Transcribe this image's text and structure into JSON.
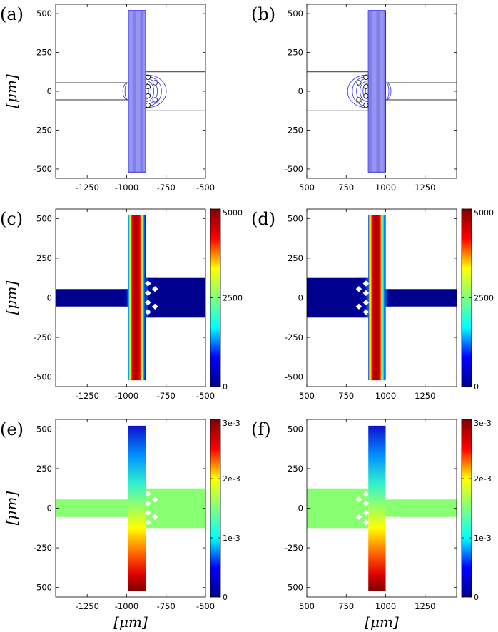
{
  "chart_data": [
    {
      "panel": "(a)",
      "type": "contour",
      "ylabel": "[μm]",
      "xlabel": "",
      "xlim": [
        -1450,
        -500
      ],
      "ylim": [
        -560,
        560
      ],
      "x_ticks": [
        "-1250",
        "-1000",
        "-750",
        "-500"
      ],
      "x_tick_values": [
        -1250,
        -1000,
        -750,
        -500
      ],
      "y_ticks": [
        "500",
        "250",
        "0",
        "-250",
        "-500"
      ],
      "y_tick_values": [
        500,
        250,
        0,
        -250,
        -500
      ],
      "orientation": "left",
      "colorbar": null
    },
    {
      "panel": "(b)",
      "type": "contour",
      "ylabel": "",
      "xlabel": "",
      "xlim": [
        500,
        1450
      ],
      "ylim": [
        -560,
        560
      ],
      "x_ticks": [
        "500",
        "750",
        "1000",
        "1250"
      ],
      "x_tick_values": [
        500,
        750,
        1000,
        1250
      ],
      "y_ticks": [
        "500",
        "250",
        "0",
        "-250",
        "-500"
      ],
      "y_tick_values": [
        500,
        250,
        0,
        -250,
        -500
      ],
      "orientation": "right",
      "colorbar": null
    },
    {
      "panel": "(c)",
      "type": "heatmap",
      "ylabel": "[μm]",
      "xlabel": "",
      "xlim": [
        -1450,
        -500
      ],
      "ylim": [
        -560,
        560
      ],
      "x_ticks": [
        "-1250",
        "-1000",
        "-750",
        "-500"
      ],
      "x_tick_values": [
        -1250,
        -1000,
        -750,
        -500
      ],
      "y_ticks": [
        "500",
        "250",
        "0",
        "-250",
        "-500"
      ],
      "y_tick_values": [
        500,
        250,
        0,
        -250,
        -500
      ],
      "orientation": "left",
      "field": "concentration",
      "colorbar": {
        "ticks": [
          "5000",
          "2500",
          "0"
        ],
        "tick_values": [
          5000,
          2500,
          0
        ],
        "range": [
          0,
          5000
        ]
      }
    },
    {
      "panel": "(d)",
      "type": "heatmap",
      "ylabel": "",
      "xlabel": "",
      "xlim": [
        500,
        1450
      ],
      "ylim": [
        -560,
        560
      ],
      "x_ticks": [
        "500",
        "750",
        "1000",
        "1250"
      ],
      "x_tick_values": [
        500,
        750,
        1000,
        1250
      ],
      "y_ticks": [
        "500",
        "250",
        "0",
        "-250",
        "-500"
      ],
      "y_tick_values": [
        500,
        250,
        0,
        -250,
        -500
      ],
      "orientation": "right",
      "field": "concentration",
      "colorbar": {
        "ticks": [
          "5000",
          "2500",
          "0"
        ],
        "tick_values": [
          5000,
          2500,
          0
        ],
        "range": [
          0,
          5000
        ]
      }
    },
    {
      "panel": "(e)",
      "type": "heatmap",
      "ylabel": "[μm]",
      "xlabel": "[μm]",
      "xlim": [
        -1450,
        -500
      ],
      "ylim": [
        -560,
        560
      ],
      "x_ticks": [
        "-1250",
        "-1000",
        "-750",
        "-500"
      ],
      "x_tick_values": [
        -1250,
        -1000,
        -750,
        -500
      ],
      "y_ticks": [
        "500",
        "250",
        "0",
        "-250",
        "-500"
      ],
      "y_tick_values": [
        500,
        250,
        0,
        -250,
        -500
      ],
      "orientation": "left",
      "field": "pressure",
      "colorbar": {
        "ticks": [
          "3e-3",
          "2e-3",
          "1e-3",
          "0"
        ],
        "tick_values": [
          0.003,
          0.002,
          0.001,
          0
        ],
        "range": [
          0,
          0.003
        ]
      }
    },
    {
      "panel": "(f)",
      "type": "heatmap",
      "ylabel": "",
      "xlabel": "[μm]",
      "xlim": [
        500,
        1450
      ],
      "ylim": [
        -560,
        560
      ],
      "x_ticks": [
        "500",
        "750",
        "1000",
        "1250"
      ],
      "x_tick_values": [
        500,
        750,
        1000,
        1250
      ],
      "y_ticks": [
        "500",
        "250",
        "0",
        "-250",
        "-500"
      ],
      "y_tick_values": [
        500,
        250,
        0,
        -250,
        -500
      ],
      "orientation": "right",
      "field": "pressure",
      "colorbar": {
        "ticks": [
          "3e-3",
          "2e-3",
          "1e-3",
          "0"
        ],
        "tick_values": [
          0.003,
          0.002,
          0.001,
          0
        ],
        "range": [
          0,
          0.003
        ]
      }
    }
  ],
  "geometry": {
    "vertical_channel": {
      "x_from_junction": [
        -110,
        0
      ],
      "y": [
        -520,
        520
      ]
    },
    "narrow_channel": {
      "length": 470,
      "y": [
        -55,
        55
      ]
    },
    "wide_channel": {
      "length": 525,
      "y": [
        -125,
        125
      ]
    },
    "pillars_offset_from_junction": [
      [
        15,
        90
      ],
      [
        15,
        30
      ],
      [
        60,
        55
      ],
      [
        15,
        -30
      ],
      [
        60,
        -55
      ],
      [
        15,
        -90
      ]
    ]
  },
  "colors": {
    "contour": "#2b2be0",
    "jet_colormap": [
      "#00008f",
      "#0000ff",
      "#00ffff",
      "#80ff80",
      "#ffff00",
      "#ff0000",
      "#800000"
    ]
  }
}
